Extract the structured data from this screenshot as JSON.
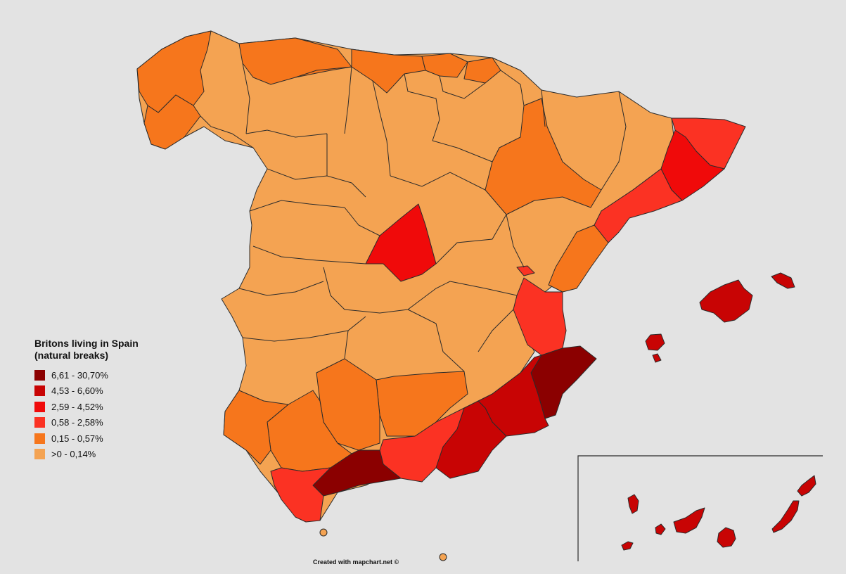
{
  "legend": {
    "title_line1": "Britons living in Spain",
    "title_line2": "(natural breaks)",
    "classes": [
      {
        "label": "6,61 - 30,70%",
        "color": "#8b0000"
      },
      {
        "label": "4,53 - 6,60%",
        "color": "#c80404"
      },
      {
        "label": "2,59 - 4,52%",
        "color": "#f00a0a"
      },
      {
        "label": "0,58 - 2,58%",
        "color": "#fb3223"
      },
      {
        "label": "0,15 - 0,57%",
        "color": "#f6761c"
      },
      {
        "label": ">0 - 0,14%",
        "color": "#f4a352"
      }
    ]
  },
  "credit": "Created with mapchart.net ©",
  "colors": {
    "background": "#e3e3e3",
    "border": "#2b2b2b"
  }
}
